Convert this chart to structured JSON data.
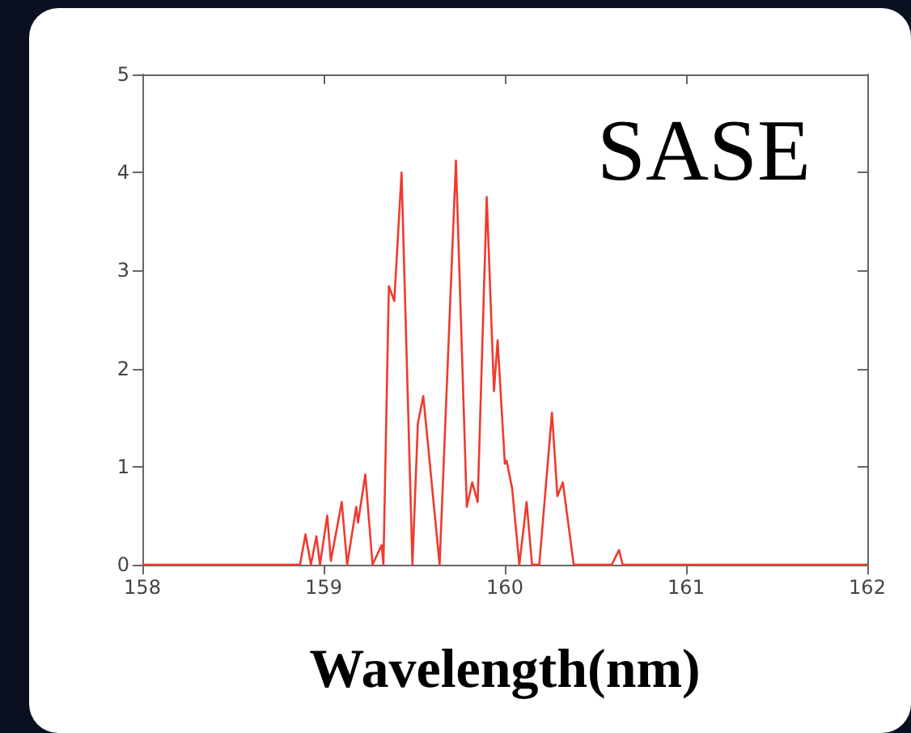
{
  "chart_data": {
    "type": "line",
    "xlabel": "Wavelength(nm)",
    "annotations": [
      "SASE"
    ],
    "x": [
      158,
      158.87,
      158.9,
      158.93,
      158.96,
      158.98,
      159.02,
      159.04,
      159.1,
      159.13,
      159.18,
      159.19,
      159.23,
      159.27,
      159.32,
      159.33,
      159.36,
      159.39,
      159.43,
      159.49,
      159.52,
      159.55,
      159.64,
      159.73,
      159.79,
      159.82,
      159.85,
      159.9,
      159.94,
      159.96,
      160,
      160.01,
      160.04,
      160.08,
      160.12,
      160.15,
      160.19,
      160.26,
      160.29,
      160.32,
      160.38,
      160.59,
      160.63,
      160.65,
      162
    ],
    "series": [
      {
        "color": "#f03a2e",
        "values": [
          0,
          0,
          0.31,
          0,
          0.29,
          0,
          0.5,
          0.04,
          0.64,
          0,
          0.59,
          0.43,
          0.92,
          0,
          0.2,
          0,
          2.84,
          2.69,
          4.0,
          0,
          1.44,
          1.72,
          0,
          4.12,
          0.59,
          0.84,
          0.64,
          3.75,
          1.77,
          2.29,
          1.03,
          1.06,
          0.78,
          0,
          0.64,
          0,
          0,
          1.55,
          0.7,
          0.84,
          0,
          0,
          0.15,
          0,
          0
        ]
      }
    ],
    "xlim": [
      158,
      162
    ],
    "xticks": [
      158,
      159,
      160,
      161,
      162
    ],
    "ylim": [
      0,
      5
    ],
    "yticks": [
      0,
      1,
      2,
      3,
      4,
      5
    ],
    "grid": false,
    "marker": "none",
    "line_style": "solid"
  }
}
